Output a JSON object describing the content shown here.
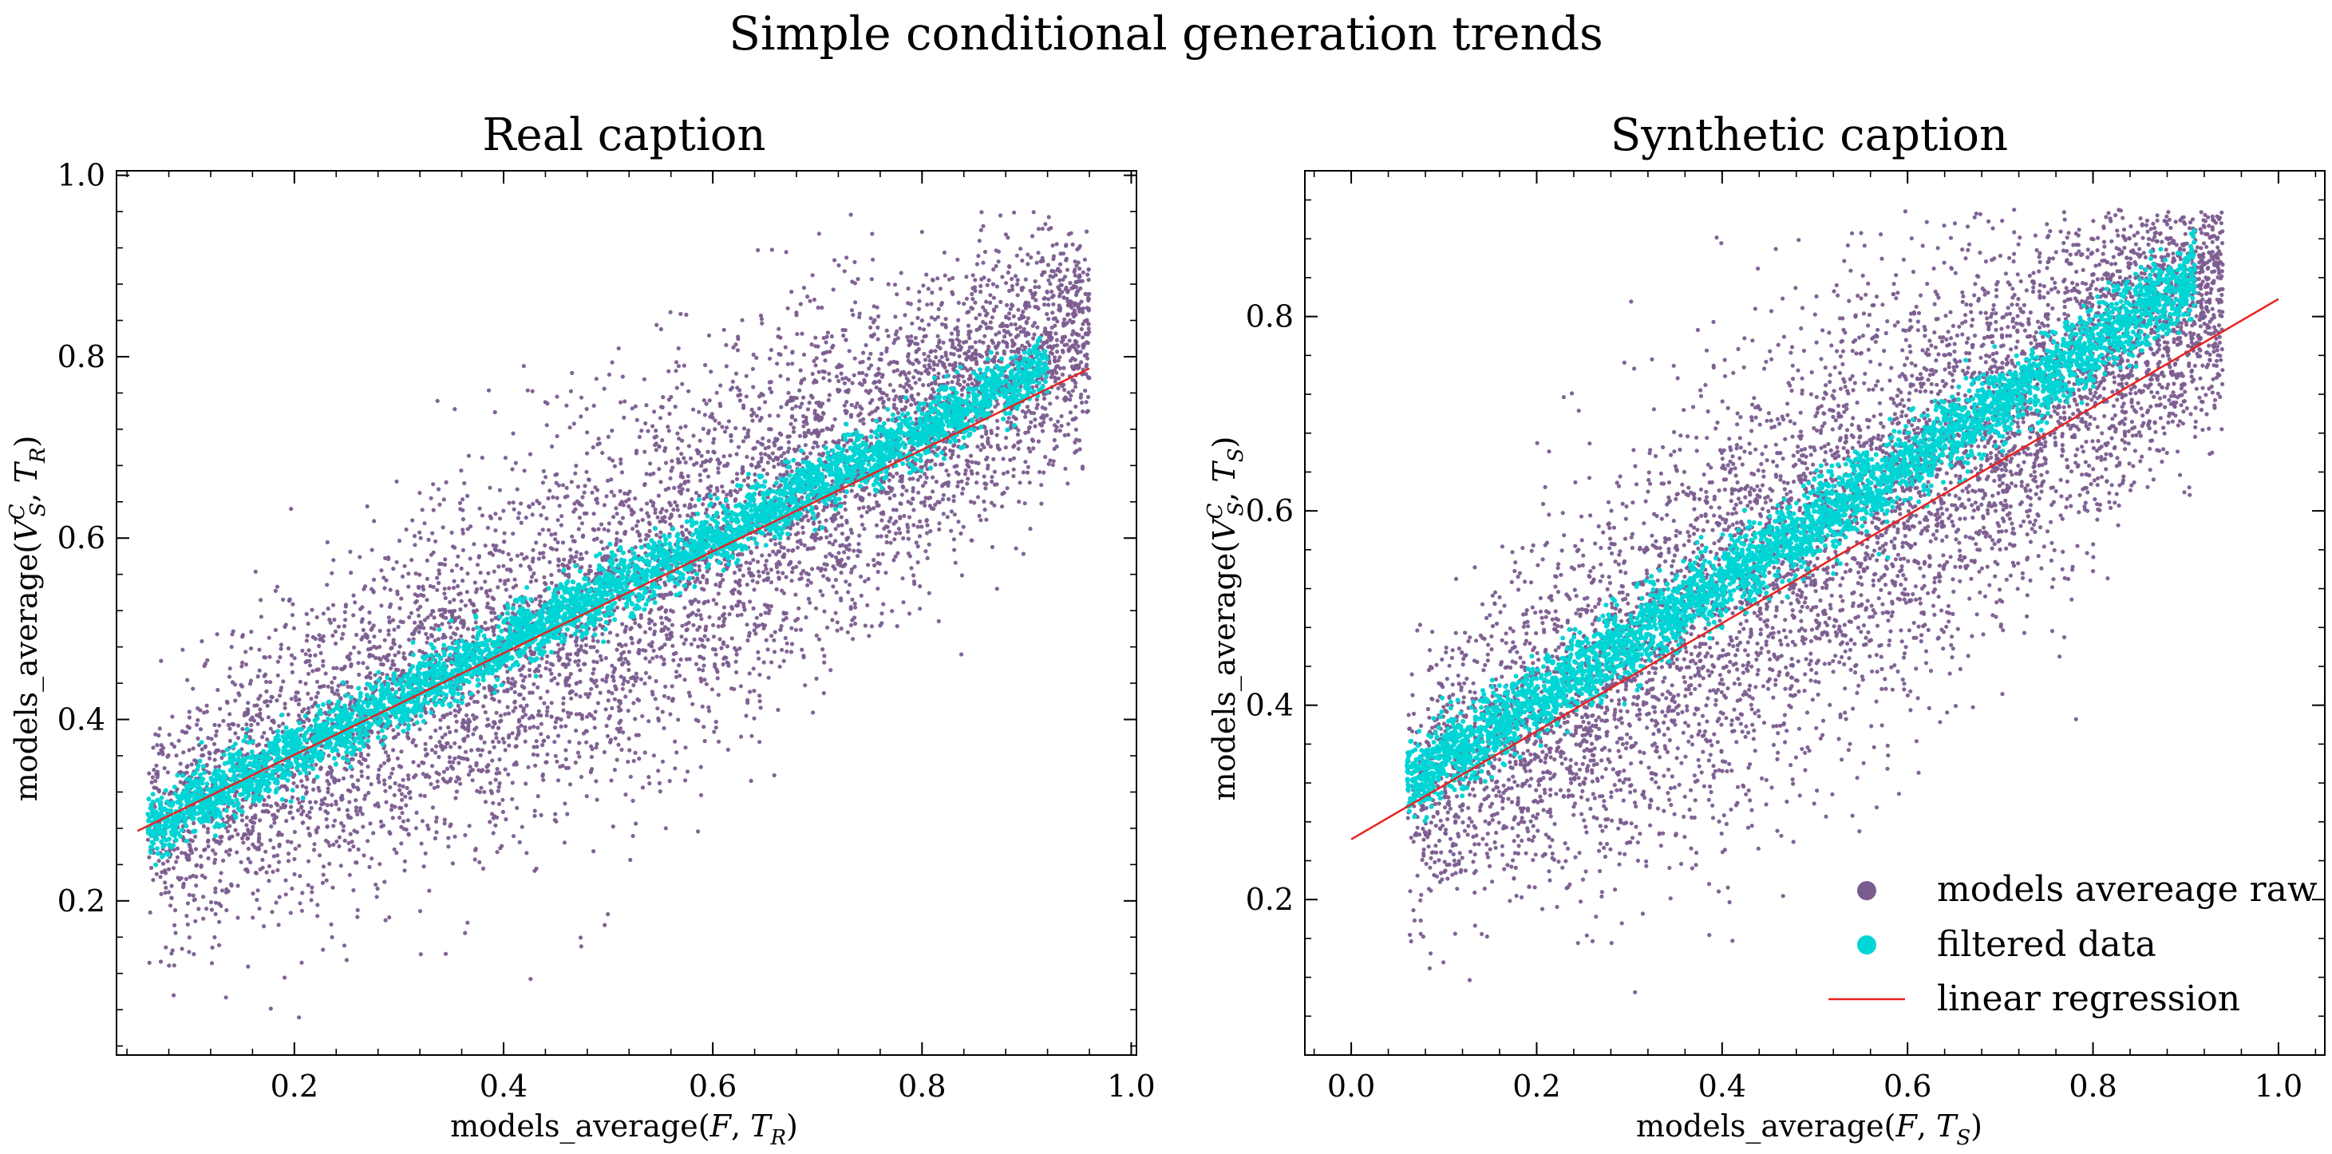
{
  "figure": {
    "suptitle": "Simple conditional generation trends"
  },
  "colors": {
    "raw": "#7b5c8f",
    "filtered": "#00d5d5",
    "regression": "#e8221e",
    "axis": "#000000"
  },
  "chart_data": [
    {
      "type": "scatter",
      "title": "Real caption",
      "xlabel": "models_average(F, T_R)",
      "ylabel": "models_average(V_S^C, T_R)",
      "xlim": [
        0.03,
        1.005
      ],
      "ylim": [
        0.03,
        1.005
      ],
      "xticks": [
        0.2,
        0.4,
        0.6,
        0.8,
        1.0
      ],
      "xtick_labels": [
        "0.2",
        "0.4",
        "0.6",
        "0.8",
        "1.0"
      ],
      "yticks": [
        0.2,
        0.4,
        0.6,
        0.8,
        1.0
      ],
      "ytick_labels": [
        "0.2",
        "0.4",
        "0.6",
        "0.8",
        "1.0"
      ],
      "grid": false,
      "series": [
        {
          "kind": "scatter",
          "description": "dense cloud around regression line, roughly 15000 points",
          "x_range": [
            0.06,
            0.96
          ],
          "y_range": [
            0.07,
            0.96
          ],
          "trend_centers": [
            [
              0.1,
              0.3
            ],
            [
              0.3,
              0.42
            ],
            [
              0.5,
              0.52
            ],
            [
              0.7,
              0.66
            ],
            [
              0.9,
              0.8
            ]
          ],
          "spread": 0.085
        },
        {
          "kind": "scatter",
          "description": "narrow band along the regression line",
          "x_range": [
            0.06,
            0.92
          ],
          "band_endpoints": [
            [
              0.06,
              0.28
            ],
            [
              0.92,
              0.79
            ]
          ],
          "band_width": 0.03
        },
        {
          "kind": "line",
          "points": [
            [
              0.05,
              0.277
            ],
            [
              0.96,
              0.787
            ]
          ]
        }
      ]
    },
    {
      "type": "scatter",
      "title": "Synthetic caption",
      "xlabel": "models_average(F, T_S)",
      "ylabel": "models_average(V_S^C, T_S)",
      "xlim": [
        -0.05,
        1.05
      ],
      "ylim": [
        0.04,
        0.95
      ],
      "xticks": [
        0.0,
        0.2,
        0.4,
        0.6,
        0.8,
        1.0
      ],
      "xtick_labels": [
        "0.0",
        "0.2",
        "0.4",
        "0.6",
        "0.8",
        "1.0"
      ],
      "yticks": [
        0.2,
        0.4,
        0.6,
        0.8
      ],
      "ytick_labels": [
        "0.2",
        "0.4",
        "0.6",
        "0.8"
      ],
      "grid": false,
      "legend": {
        "position": "lower-right",
        "entries": [
          "models avereage raw",
          "filtered data",
          "linear regression"
        ]
      },
      "series": [
        {
          "name": "models avereage raw",
          "kind": "scatter",
          "description": "dense cloud around regression line, roughly 15000 points",
          "x_range": [
            0.06,
            0.94
          ],
          "y_range": [
            0.08,
            0.91
          ],
          "trend_centers": [
            [
              0.1,
              0.33
            ],
            [
              0.3,
              0.44
            ],
            [
              0.5,
              0.57
            ],
            [
              0.7,
              0.7
            ],
            [
              0.9,
              0.82
            ]
          ],
          "spread": 0.09
        },
        {
          "name": "filtered data",
          "kind": "scatter",
          "description": "narrow band along the regression line",
          "x_range": [
            0.06,
            0.91
          ],
          "band_endpoints": [
            [
              0.06,
              0.32
            ],
            [
              0.91,
              0.84
            ]
          ],
          "band_width": 0.035
        },
        {
          "name": "linear regression",
          "kind": "line",
          "points": [
            [
              0.0,
              0.262
            ],
            [
              1.0,
              0.818
            ]
          ]
        }
      ]
    }
  ]
}
